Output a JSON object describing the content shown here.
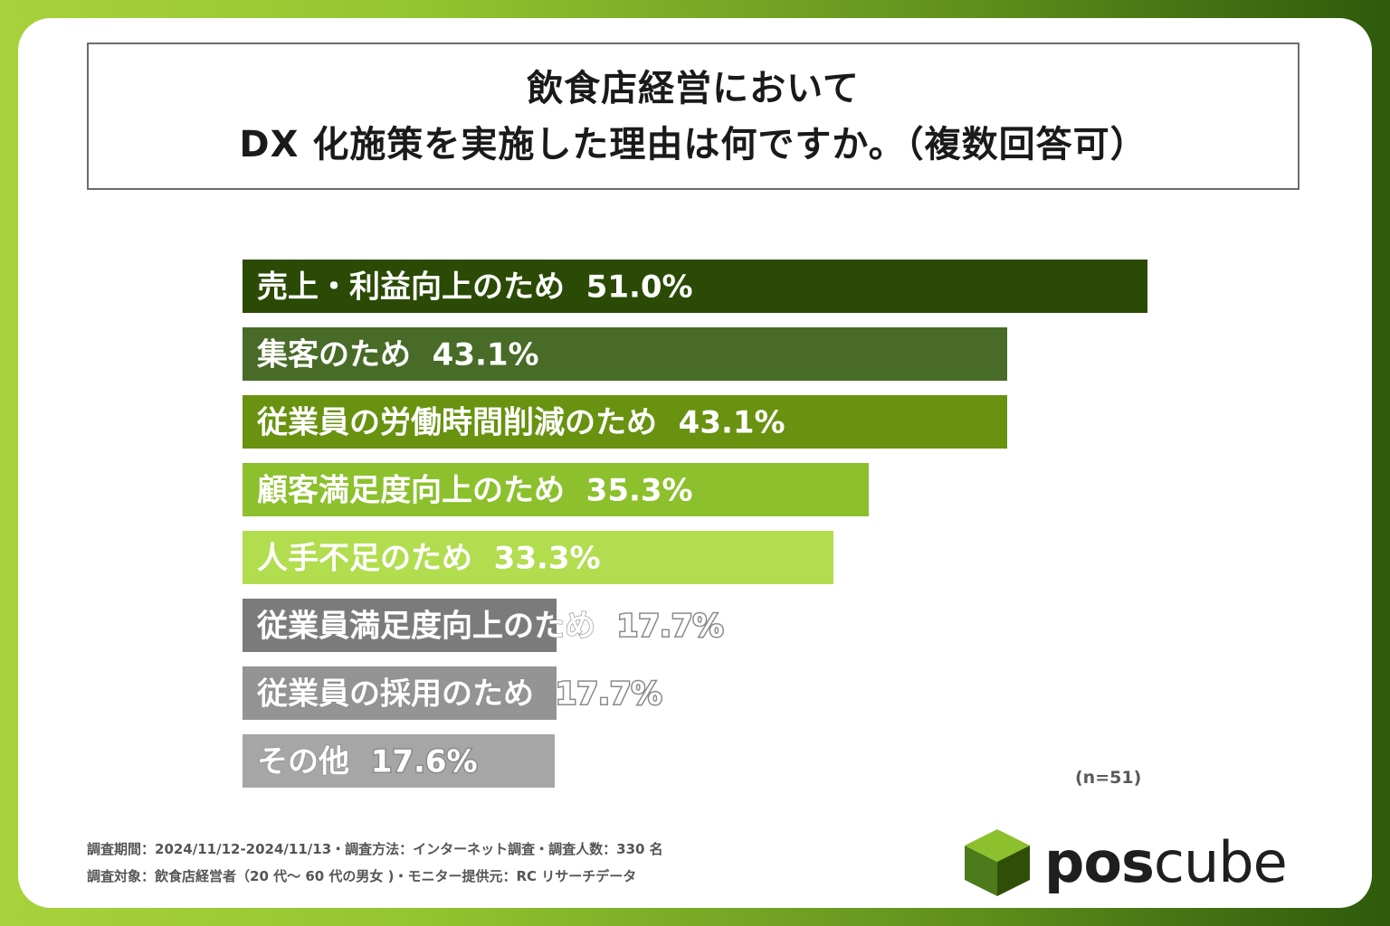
{
  "title": {
    "line1": "飲食店経営において",
    "line2": "DX 化施策を実施した理由は何ですか。（複数回答可）"
  },
  "chart_data": {
    "type": "bar",
    "orientation": "horizontal",
    "categories": [
      "売上・利益向上のため",
      "集客のため",
      "従業員の労働時間削減のため",
      "顧客満足度向上のため",
      "人手不足のため",
      "従業員満足度向上のため",
      "従業員の採用のため",
      "その他"
    ],
    "values": [
      51.0,
      43.1,
      43.1,
      35.3,
      33.3,
      17.7,
      17.7,
      17.6
    ],
    "value_labels": [
      "51.0%",
      "43.1%",
      "43.1%",
      "35.3%",
      "33.3%",
      "17.7%",
      "17.7%",
      "17.6%"
    ],
    "unit": "%",
    "xlim": [
      0,
      51.0
    ],
    "colors": [
      "#2b4a05",
      "#486b27",
      "#68920f",
      "#8cc02c",
      "#b1dd4e",
      "#7b7b7b",
      "#949494",
      "#a6a6a6"
    ],
    "label_colors": [
      "#ffffff",
      "#ffffff",
      "#ffffff",
      "#ffffff",
      "#ffffff",
      "#ffffff",
      "#ffffff",
      "#ffffff"
    ],
    "value_outline_color": "#8a8a8a"
  },
  "sample_note": "(n=51)",
  "footer": {
    "line1": "調査期間：2024/11/12-2024/11/13・調査方法：インターネット調査・調査人数：330 名",
    "line2": "調査対象：飲食店経営者（20 代〜 60 代の男女 )・モニター提供元：RC リサーチデータ"
  },
  "logo": {
    "text_bold": "pos",
    "text_regular": "cube",
    "cube_colors": [
      "#4d7a1a",
      "#8cc02c",
      "#2f4f08"
    ]
  }
}
